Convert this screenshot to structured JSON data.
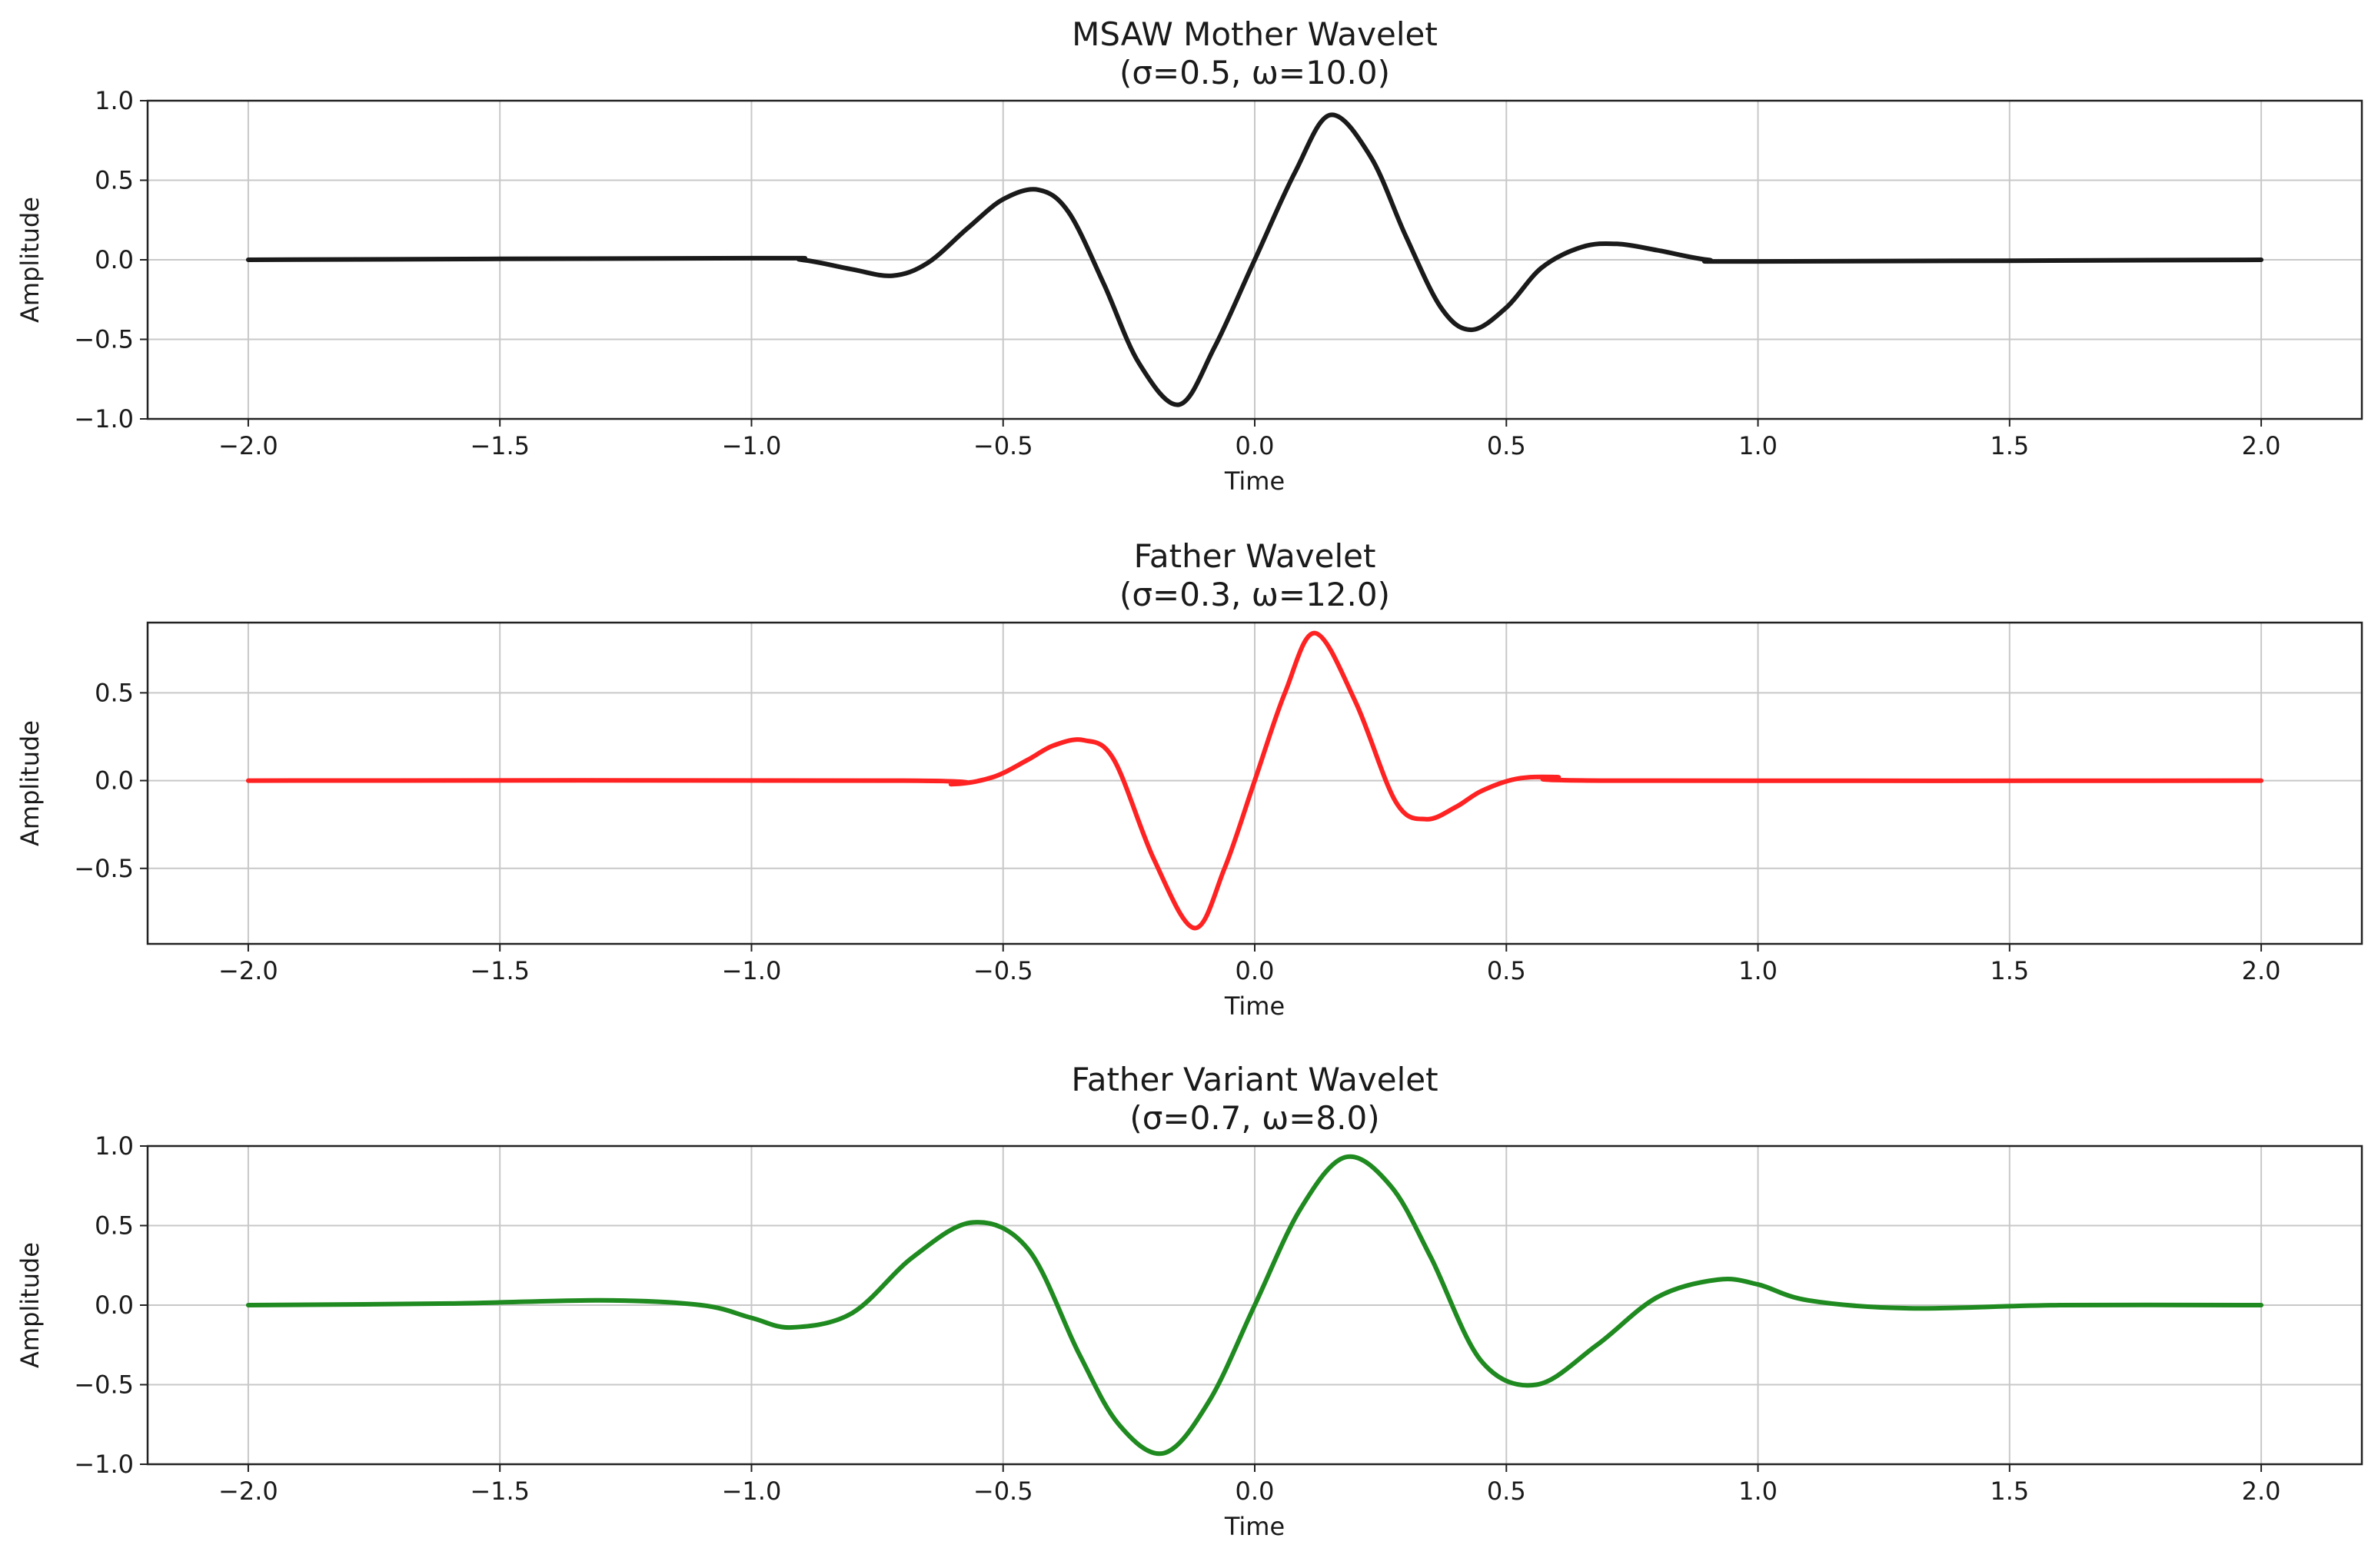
{
  "chart_data": [
    {
      "type": "line",
      "title": "MSAW Mother Wavelet",
      "subtitle": "(σ=0.5, ω=10.0)",
      "xlabel": "Time",
      "ylabel": "Amplitude",
      "xlim": [
        -2.2,
        2.2
      ],
      "ylim": [
        -1.0,
        1.0
      ],
      "xticks": [
        "−2.0",
        "−1.5",
        "−1.0",
        "−0.5",
        "0.0",
        "0.5",
        "1.0",
        "1.5",
        "2.0"
      ],
      "yticks": [
        "1.0",
        "0.5",
        "0.0",
        "−0.5",
        "−1.0"
      ],
      "grid": true,
      "series": [
        {
          "color": "#1a1a1a",
          "x": [
            -2.0,
            -1.0,
            -0.9,
            -0.8,
            -0.72,
            -0.65,
            -0.57,
            -0.5,
            -0.43,
            -0.37,
            -0.3,
            -0.23,
            -0.15,
            -0.08,
            0.0,
            0.08,
            0.15,
            0.23,
            0.3,
            0.37,
            0.43,
            0.5,
            0.57,
            0.65,
            0.72,
            0.8,
            0.9,
            1.0,
            2.0
          ],
          "y": [
            0.0,
            0.01,
            0.0,
            -0.06,
            -0.1,
            -0.02,
            0.2,
            0.38,
            0.44,
            0.3,
            -0.15,
            -0.65,
            -0.91,
            -0.55,
            0.0,
            0.55,
            0.91,
            0.65,
            0.15,
            -0.3,
            -0.44,
            -0.3,
            -0.05,
            0.08,
            0.1,
            0.06,
            0.0,
            -0.01,
            0.0
          ]
        }
      ]
    },
    {
      "type": "line",
      "title": "Father  Wavelet",
      "subtitle": "(σ=0.3, ω=12.0)",
      "xlabel": "Time",
      "ylabel": "Amplitude",
      "xlim": [
        -2.2,
        2.2
      ],
      "ylim": [
        -0.93,
        0.9
      ],
      "xticks": [
        "−2.0",
        "−1.5",
        "−1.0",
        "−0.5",
        "0.0",
        "0.5",
        "1.0",
        "1.5",
        "2.0"
      ],
      "yticks": [
        "0.5",
        "0.0",
        "−0.5"
      ],
      "grid": true,
      "series": [
        {
          "color": "#ff2222",
          "x": [
            -2.0,
            -0.7,
            -0.6,
            -0.52,
            -0.45,
            -0.4,
            -0.34,
            -0.28,
            -0.2,
            -0.12,
            -0.06,
            0.0,
            0.06,
            0.12,
            0.2,
            0.28,
            0.34,
            0.4,
            0.45,
            0.52,
            0.6,
            0.7,
            2.0
          ],
          "y": [
            0.0,
            0.0,
            -0.02,
            0.02,
            0.12,
            0.2,
            0.23,
            0.12,
            -0.45,
            -0.84,
            -0.5,
            0.0,
            0.5,
            0.84,
            0.45,
            -0.12,
            -0.22,
            -0.15,
            -0.06,
            0.01,
            0.02,
            0.0,
            0.0
          ]
        }
      ]
    },
    {
      "type": "line",
      "title": "Father Variant Wavelet",
      "subtitle": "(σ=0.7, ω=8.0)",
      "xlabel": "Time",
      "ylabel": "Amplitude",
      "xlim": [
        -2.2,
        2.2
      ],
      "ylim": [
        -1.0,
        1.0
      ],
      "xticks": [
        "−2.0",
        "−1.5",
        "−1.0",
        "−0.5",
        "0.0",
        "0.5",
        "1.0",
        "1.5",
        "2.0"
      ],
      "yticks": [
        "1.0",
        "0.5",
        "0.0",
        "−0.5",
        "−1.0"
      ],
      "grid": true,
      "series": [
        {
          "color": "#1f8a1f",
          "x": [
            -2.0,
            -1.6,
            -1.3,
            -1.1,
            -1.0,
            -0.92,
            -0.8,
            -0.68,
            -0.56,
            -0.45,
            -0.35,
            -0.27,
            -0.18,
            -0.09,
            0.0,
            0.09,
            0.18,
            0.27,
            0.35,
            0.45,
            0.56,
            0.68,
            0.8,
            0.92,
            1.0,
            1.1,
            1.3,
            1.6,
            2.0
          ],
          "y": [
            0.0,
            0.01,
            0.03,
            0.0,
            -0.08,
            -0.14,
            -0.05,
            0.3,
            0.52,
            0.35,
            -0.3,
            -0.75,
            -0.93,
            -0.6,
            0.0,
            0.6,
            0.93,
            0.75,
            0.3,
            -0.35,
            -0.5,
            -0.25,
            0.05,
            0.16,
            0.13,
            0.03,
            -0.02,
            0.0,
            0.0
          ]
        }
      ]
    }
  ]
}
